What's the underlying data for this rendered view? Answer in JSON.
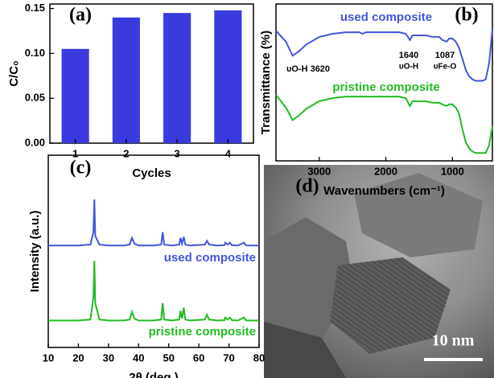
{
  "chart_data": [
    {
      "type": "bar",
      "panel_label": "(a)",
      "y_label": "C/C₀",
      "x_label": "Cycles",
      "categories": [
        "1",
        "2",
        "3",
        "4"
      ],
      "values": [
        0.105,
        0.14,
        0.145,
        0.148
      ],
      "color": "#3a3ade",
      "ylim": [
        0,
        0.155
      ],
      "yticks": [
        {
          "value": 0,
          "label": "0.00"
        },
        {
          "value": 0.05,
          "label": "0.05"
        },
        {
          "value": 0.1,
          "label": "0.10"
        },
        {
          "value": 0.15,
          "label": "0.15"
        }
      ]
    },
    {
      "type": "line",
      "panel_label": "(b)",
      "y_label": "Transmittance (%)",
      "x_label": "Wavenumbers (cm⁻¹)",
      "annotations": [
        "used composite",
        "pristine composite",
        "υO-H 3620",
        "1640",
        "υO-H",
        "1087",
        "υFe-O"
      ],
      "x": [
        3650,
        3500,
        3400,
        3300,
        3200,
        3000,
        2800,
        2600,
        2400,
        2350,
        2300,
        2200,
        2000,
        1800,
        1700,
        1640,
        1600,
        1500,
        1400,
        1300,
        1200,
        1150,
        1087,
        1050,
        1000,
        950,
        900,
        850,
        800,
        750,
        700,
        650,
        600,
        550,
        500,
        450,
        400
      ],
      "series": [
        {
          "color": "#4455dd",
          "values": [
            83,
            76,
            67,
            70,
            74,
            79,
            81,
            82,
            82,
            81,
            82,
            82,
            82,
            82,
            81,
            77,
            80,
            80,
            80,
            79,
            79,
            77,
            76,
            78,
            78,
            76,
            72,
            65,
            58,
            54,
            52,
            51,
            51,
            51,
            52,
            62,
            84
          ]
        },
        {
          "color": "#22bb22",
          "values": [
            42,
            34,
            26,
            29,
            33,
            38,
            40,
            41,
            41,
            41,
            41,
            41,
            41,
            41,
            40,
            35,
            38,
            38,
            38,
            37,
            37,
            36,
            35,
            36,
            36,
            34,
            30,
            20,
            12,
            8,
            6,
            5,
            5,
            5,
            5,
            10,
            22
          ]
        }
      ],
      "xlim": [
        3650,
        400
      ],
      "ylim": [
        0,
        100
      ],
      "xticks": [
        3000,
        2000,
        1000
      ]
    },
    {
      "type": "line",
      "panel_label": "(c)",
      "y_label": "Intensity (a.u.)",
      "x_label": "2θ (deg.)",
      "annotations": [
        "used composite",
        "pristine composite"
      ],
      "x": [
        10,
        15,
        20,
        24,
        25,
        25.3,
        25.6,
        27,
        30,
        35,
        37,
        37.8,
        38.6,
        40,
        45,
        47.5,
        48,
        48.5,
        51,
        53.5,
        53.9,
        54.4,
        55,
        55.5,
        57,
        62,
        62.7,
        63.4,
        66,
        68.5,
        68.8,
        69.5,
        70.3,
        71,
        73,
        75,
        75.5,
        76,
        80
      ],
      "series": [
        {
          "color": "#4455dd",
          "values": [
            53,
            53,
            53,
            53.5,
            60,
            77,
            58,
            53.5,
            53,
            53,
            53.5,
            57,
            54,
            53,
            53,
            53.5,
            60,
            53.5,
            53,
            53.5,
            57,
            54,
            57.5,
            53.5,
            53,
            53.5,
            55.5,
            53.5,
            53,
            53.2,
            54.5,
            53.5,
            54.5,
            53.2,
            53,
            54.5,
            53.3,
            53,
            53
          ]
        },
        {
          "color": "#22bb22",
          "values": [
            14,
            14,
            14,
            14.5,
            26,
            45,
            23,
            14.5,
            14,
            14,
            14.5,
            18.5,
            15,
            14,
            14,
            14.5,
            23,
            14.5,
            14,
            14.5,
            19,
            15,
            20.7,
            14.5,
            14,
            14.5,
            17,
            14.5,
            14,
            14.2,
            15.6,
            14.5,
            15.5,
            14.2,
            14,
            15.6,
            14.3,
            14,
            14
          ]
        }
      ],
      "xlim": [
        10,
        80
      ],
      "ylim": [
        0,
        100
      ],
      "xticks": [
        10,
        20,
        30,
        40,
        50,
        60,
        70,
        80
      ]
    }
  ],
  "image": {
    "panel_label": "(d)",
    "scale_bar": "10 nm"
  }
}
